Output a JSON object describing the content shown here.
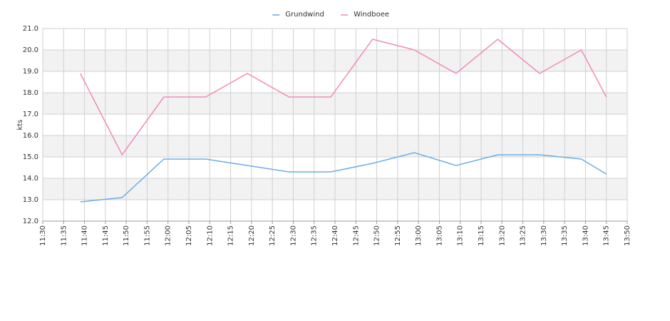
{
  "chart_data": {
    "type": "line",
    "y_label": "kts",
    "x": [
      "11:39",
      "11:49",
      "11:59",
      "12:09",
      "12:19",
      "12:29",
      "12:39",
      "12:49",
      "12:59",
      "13:09",
      "13:19",
      "13:29",
      "13:39",
      "13:45"
    ],
    "series": [
      {
        "name": "Grundwind",
        "color": "#6aaee8",
        "values": [
          12.9,
          13.1,
          14.9,
          14.9,
          14.6,
          14.3,
          14.3,
          14.7,
          15.2,
          14.6,
          15.1,
          15.1,
          14.9,
          14.2
        ]
      },
      {
        "name": "Windboee",
        "color": "#f08cb9",
        "values": [
          18.9,
          15.1,
          17.8,
          17.8,
          18.9,
          17.8,
          17.8,
          20.5,
          20.0,
          18.9,
          20.5,
          18.9,
          20.0,
          17.8
        ]
      }
    ],
    "xlim": [
      "11:30",
      "13:50"
    ],
    "xticks": [
      "11:30",
      "11:35",
      "11:40",
      "11:45",
      "11:50",
      "11:55",
      "12:00",
      "12:05",
      "12:10",
      "12:15",
      "12:20",
      "12:25",
      "12:30",
      "12:35",
      "12:40",
      "12:45",
      "12:50",
      "12:55",
      "13:00",
      "13:05",
      "13:10",
      "13:15",
      "13:20",
      "13:25",
      "13:30",
      "13:35",
      "13:40",
      "13:45",
      "13:50"
    ],
    "ylim": [
      12,
      21
    ],
    "yticks": [
      {
        "value": 12,
        "label": "12.0"
      },
      {
        "value": 13,
        "label": "13.0"
      },
      {
        "value": 14,
        "label": "14.0"
      },
      {
        "value": 15,
        "label": "15.0"
      },
      {
        "value": 16,
        "label": "16.0"
      },
      {
        "value": 17,
        "label": "17.0"
      },
      {
        "value": 18,
        "label": "18.0"
      },
      {
        "value": 19,
        "label": "19.0"
      },
      {
        "value": 20,
        "label": "20.0"
      },
      {
        "value": 21,
        "label": "21.0"
      }
    ],
    "grid": true,
    "legend": "top"
  }
}
